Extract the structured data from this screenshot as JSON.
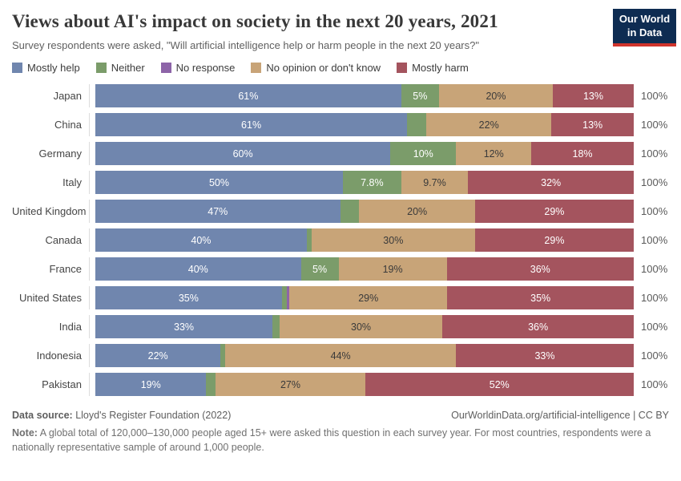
{
  "header": {
    "title": "Views about AI's impact on society in the next 20 years, 2021",
    "subtitle": "Survey respondents were asked, \"Will artificial intelligence help or harm people in the next 20 years?\"",
    "logo": {
      "line1": "Our World",
      "line2": "in Data",
      "bg_color": "#0e2c52",
      "accent_color": "#d0342c"
    }
  },
  "colors": {
    "help": "#7086ae",
    "neither": "#7b9c6a",
    "noresponse": "#8d64a8",
    "noopinion": "#c8a478",
    "harm": "#a4545e"
  },
  "legend": [
    {
      "key": "help",
      "label": "Mostly help",
      "color": "#7086ae"
    },
    {
      "key": "neither",
      "label": "Neither",
      "color": "#7b9c6a"
    },
    {
      "key": "noresponse",
      "label": "No response",
      "color": "#8d64a8"
    },
    {
      "key": "noopinion",
      "label": "No opinion or don't know",
      "color": "#c8a478"
    },
    {
      "key": "harm",
      "label": "Mostly harm",
      "color": "#a4545e"
    }
  ],
  "chart_data": {
    "type": "bar",
    "stacked": true,
    "orientation": "horizontal",
    "unit": "%",
    "series_names": [
      "Mostly help",
      "Neither",
      "No response",
      "No opinion or don't know",
      "Mostly harm"
    ],
    "categories": [
      "Japan",
      "China",
      "Germany",
      "Italy",
      "United Kingdom",
      "Canada",
      "France",
      "United States",
      "India",
      "Indonesia",
      "Pakistan"
    ],
    "rows": [
      {
        "country": "Japan",
        "total_label": "100%",
        "segments": [
          {
            "key": "help",
            "value": 61,
            "label": "61%"
          },
          {
            "key": "neither",
            "value": 5,
            "label": "5%"
          },
          {
            "key": "noopinion",
            "value": 20,
            "label": "20%"
          },
          {
            "key": "harm",
            "value": 13,
            "label": "13%"
          }
        ]
      },
      {
        "country": "China",
        "total_label": "100%",
        "segments": [
          {
            "key": "help",
            "value": 61,
            "label": "61%"
          },
          {
            "key": "neither",
            "value": 4,
            "label": ""
          },
          {
            "key": "noopinion",
            "value": 22,
            "label": "22%"
          },
          {
            "key": "harm",
            "value": 13,
            "label": "13%"
          }
        ]
      },
      {
        "country": "Germany",
        "total_label": "100%",
        "segments": [
          {
            "key": "help",
            "value": 60,
            "label": "60%"
          },
          {
            "key": "neither",
            "value": 10,
            "label": "10%"
          },
          {
            "key": "noopinion",
            "value": 12,
            "label": "12%"
          },
          {
            "key": "harm",
            "value": 18,
            "label": "18%"
          }
        ]
      },
      {
        "country": "Italy",
        "total_label": "100%",
        "segments": [
          {
            "key": "help",
            "value": 50,
            "label": "50%"
          },
          {
            "key": "neither",
            "value": 7.8,
            "label": "7.8%"
          },
          {
            "key": "noopinion",
            "value": 9.7,
            "label": "9.7%"
          },
          {
            "key": "harm",
            "value": 32,
            "label": "32%"
          }
        ]
      },
      {
        "country": "United Kingdom",
        "total_label": "100%",
        "segments": [
          {
            "key": "help",
            "value": 47,
            "label": "47%"
          },
          {
            "key": "neither",
            "value": 4,
            "label": ""
          },
          {
            "key": "noopinion",
            "value": 20,
            "label": "20%"
          },
          {
            "key": "harm",
            "value": 29,
            "label": "29%"
          }
        ]
      },
      {
        "country": "Canada",
        "total_label": "100%",
        "segments": [
          {
            "key": "help",
            "value": 40,
            "label": "40%"
          },
          {
            "key": "neither",
            "value": 1,
            "label": ""
          },
          {
            "key": "noopinion",
            "value": 30,
            "label": "30%"
          },
          {
            "key": "harm",
            "value": 29,
            "label": "29%"
          }
        ]
      },
      {
        "country": "France",
        "total_label": "100%",
        "segments": [
          {
            "key": "help",
            "value": 40,
            "label": "40%"
          },
          {
            "key": "neither",
            "value": 5,
            "label": "5%"
          },
          {
            "key": "noopinion",
            "value": 19,
            "label": "19%"
          },
          {
            "key": "harm",
            "value": 36,
            "label": "36%"
          }
        ]
      },
      {
        "country": "United States",
        "total_label": "100%",
        "segments": [
          {
            "key": "help",
            "value": 35,
            "label": "35%"
          },
          {
            "key": "neither",
            "value": 1,
            "label": ""
          },
          {
            "key": "noresponse",
            "value": 0.6,
            "label": ""
          },
          {
            "key": "noopinion",
            "value": 29,
            "label": "29%"
          },
          {
            "key": "harm",
            "value": 35,
            "label": "35%"
          }
        ]
      },
      {
        "country": "India",
        "total_label": "100%",
        "segments": [
          {
            "key": "help",
            "value": 33,
            "label": "33%"
          },
          {
            "key": "neither",
            "value": 1.5,
            "label": ""
          },
          {
            "key": "noopinion",
            "value": 30,
            "label": "30%"
          },
          {
            "key": "harm",
            "value": 36,
            "label": "36%"
          }
        ]
      },
      {
        "country": "Indonesia",
        "total_label": "100%",
        "segments": [
          {
            "key": "help",
            "value": 22,
            "label": "22%"
          },
          {
            "key": "neither",
            "value": 1,
            "label": ""
          },
          {
            "key": "noopinion",
            "value": 44,
            "label": "44%"
          },
          {
            "key": "harm",
            "value": 33,
            "label": "33%"
          }
        ]
      },
      {
        "country": "Pakistan",
        "total_label": "100%",
        "segments": [
          {
            "key": "help",
            "value": 19,
            "label": "19%"
          },
          {
            "key": "neither",
            "value": 2,
            "label": ""
          },
          {
            "key": "noopinion",
            "value": 27,
            "label": "27%"
          },
          {
            "key": "harm",
            "value": 52,
            "label": "52%"
          }
        ]
      }
    ]
  },
  "footer": {
    "datasource_label": "Data source:",
    "datasource": " Lloyd's Register Foundation (2022)",
    "credit": "OurWorldinData.org/artificial-intelligence | CC BY",
    "note_label": "Note:",
    "note": " A global total of 120,000–130,000 people aged 15+ were asked this question in each survey year. For most countries, respondents were a nationally representative sample of around 1,000 people."
  }
}
